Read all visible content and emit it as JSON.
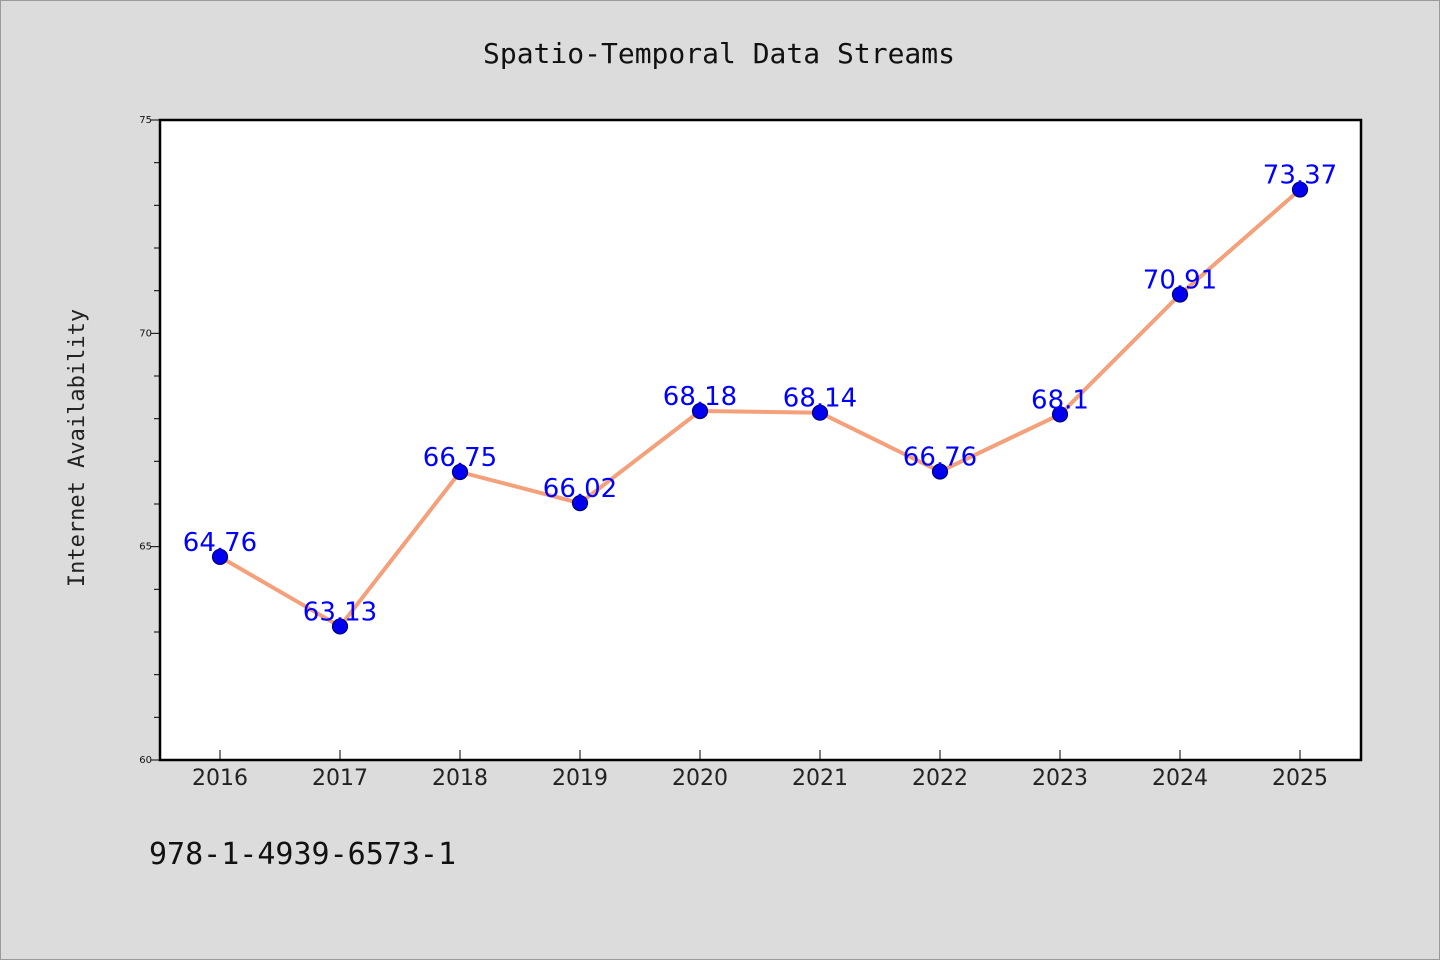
{
  "chart_data": {
    "type": "line",
    "title": "Spatio-Temporal Data Streams",
    "xlabel": "",
    "ylabel": "Internet Availability",
    "categories": [
      "2016",
      "2017",
      "2018",
      "2019",
      "2020",
      "2021",
      "2022",
      "2023",
      "2024",
      "2025"
    ],
    "series": [
      {
        "values": [
          64.76,
          63.13,
          66.75,
          66.02,
          68.18,
          68.14,
          66.76,
          68.1,
          70.91,
          73.37
        ],
        "data_labels": [
          "64.76",
          "63.13",
          "66.75",
          "66.02",
          "68.18",
          "68.14",
          "66.76",
          "68.1",
          "70.91",
          "73.37"
        ]
      }
    ],
    "ylim": [
      60,
      75
    ],
    "yticks": [
      "60",
      "65",
      "70",
      "75"
    ],
    "grid": false,
    "legend": "none",
    "colors": {
      "line": "#f4a07a",
      "marker": "#0000ee",
      "marker_edge": "#00007a",
      "data_label": "#0000ff",
      "plot_background": "#ffffff",
      "figure_background": "#dcdcdc"
    }
  },
  "footer": {
    "isbn": "978-1-4939-6573-1"
  }
}
